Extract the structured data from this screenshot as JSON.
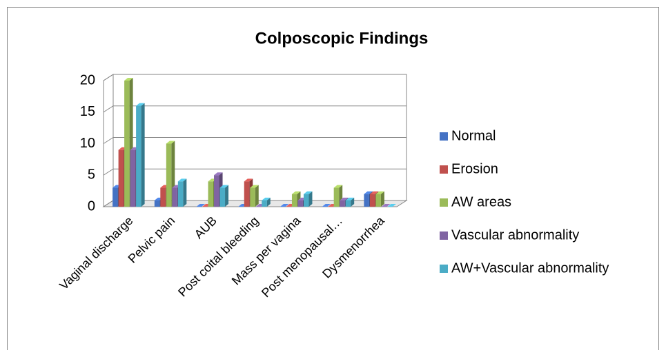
{
  "chart_data": {
    "type": "bar",
    "title": "Colposcopic Findings",
    "categories": [
      "Vaginal discharge",
      "Pelvic pain",
      "AUB",
      "Post coital bleeding",
      "Mass per vagina",
      "Post menopausal…",
      "Dysmenorrhea"
    ],
    "series": [
      {
        "name": "Normal",
        "color": "#4472c4",
        "values": [
          3,
          1,
          0,
          0,
          0,
          0,
          2
        ]
      },
      {
        "name": "Erosion",
        "color": "#c0504d",
        "values": [
          9,
          3,
          0,
          4,
          0,
          0,
          2
        ]
      },
      {
        "name": "AW areas",
        "color": "#9bbb59",
        "values": [
          20,
          10,
          4,
          3,
          2,
          3,
          2
        ]
      },
      {
        "name": "Vascular abnormality",
        "color": "#8064a2",
        "values": [
          9,
          3,
          5,
          0,
          1,
          1,
          0
        ]
      },
      {
        "name": "AW+Vascular abnormality",
        "color": "#4bacc6",
        "values": [
          16,
          4,
          3,
          1,
          2,
          1,
          0
        ]
      }
    ],
    "ylim": [
      0,
      20
    ],
    "yticks": [
      0,
      5,
      10,
      15,
      20
    ],
    "grid": true,
    "legend": "right"
  }
}
